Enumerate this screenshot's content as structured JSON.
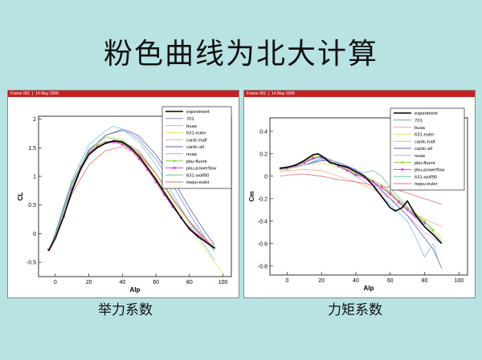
{
  "slide": {
    "title": "粉色曲线为北大计算",
    "captions": [
      "举力系数",
      "力矩系数"
    ],
    "frame_labels": [
      "Frame 001",
      "14 May 2006"
    ]
  },
  "series_styles": [
    {
      "name": "experiment",
      "color": "#000000",
      "width": 1.6
    },
    {
      "name": "701",
      "color": "#8a8ad4",
      "width": 0.8
    },
    {
      "name": "buaa",
      "color": "#f0a0b8",
      "width": 0.8
    },
    {
      "name": "631-euler",
      "color": "#e8e060",
      "width": 0.8
    },
    {
      "name": "cardc-half",
      "color": "#f0b090",
      "width": 0.8
    },
    {
      "name": "cardc-all",
      "color": "#6060c0",
      "width": 0.8
    },
    {
      "name": "nuaa",
      "color": "#80c0e8",
      "width": 0.8
    },
    {
      "name": "pku-fluent",
      "color": "#90d040",
      "width": 1.0,
      "marker": "diamond"
    },
    {
      "name": "pku-powerflow",
      "color": "#e040e0",
      "width": 1.0,
      "marker": "square"
    },
    {
      "name": "631-wolf90",
      "color": "#70c0a0",
      "width": 0.8
    },
    {
      "name": "nwpu-euler",
      "color": "#e87070",
      "width": 0.8
    }
  ],
  "chart_data": [
    {
      "type": "line",
      "xlabel": "Alp",
      "ylabel": "CL",
      "xlim": [
        -10,
        105
      ],
      "ylim": [
        -0.75,
        2.05
      ],
      "xticks": [
        0,
        20,
        40,
        60,
        80,
        100
      ],
      "yticks": [
        -0.5,
        0,
        0.5,
        1,
        1.5,
        2
      ],
      "legend_position": "top-right",
      "series": [
        {
          "name": "experiment",
          "x": [
            -4,
            0,
            5,
            10,
            15,
            20,
            25,
            30,
            35,
            40,
            45,
            50,
            55,
            60,
            65,
            70,
            75,
            80,
            85,
            90,
            95
          ],
          "y": [
            -0.3,
            -0.08,
            0.3,
            0.75,
            1.12,
            1.38,
            1.5,
            1.58,
            1.62,
            1.6,
            1.5,
            1.35,
            1.15,
            0.95,
            0.72,
            0.5,
            0.28,
            0.08,
            -0.05,
            -0.15,
            -0.25
          ]
        },
        {
          "name": "701",
          "x": [
            -4,
            0,
            10,
            20,
            30,
            40,
            45,
            50,
            60,
            70,
            80,
            90,
            95
          ],
          "y": [
            -0.3,
            0.0,
            0.9,
            1.45,
            1.72,
            1.8,
            1.75,
            1.65,
            1.3,
            0.85,
            0.35,
            -0.1,
            -0.3
          ]
        },
        {
          "name": "buaa",
          "x": [
            -4,
            0,
            10,
            20,
            30,
            40,
            50,
            60,
            70,
            80,
            90,
            95
          ],
          "y": [
            -0.3,
            -0.05,
            0.8,
            1.4,
            1.6,
            1.62,
            1.45,
            1.05,
            0.6,
            0.2,
            -0.12,
            -0.25
          ]
        },
        {
          "name": "631-euler",
          "x": [
            -4,
            0,
            10,
            20,
            30,
            40,
            50,
            60,
            70,
            80,
            90,
            100
          ],
          "y": [
            -0.3,
            -0.02,
            0.85,
            1.45,
            1.7,
            1.65,
            1.4,
            1.0,
            0.55,
            0.15,
            -0.3,
            -0.7
          ]
        },
        {
          "name": "cardc-half",
          "x": [
            -4,
            0,
            10,
            20,
            30,
            40,
            50,
            60,
            70,
            80,
            90,
            95
          ],
          "y": [
            -0.3,
            -0.05,
            0.82,
            1.42,
            1.62,
            1.58,
            1.4,
            1.05,
            0.62,
            0.22,
            -0.1,
            -0.22
          ]
        },
        {
          "name": "cardc-all",
          "x": [
            -4,
            0,
            10,
            20,
            30,
            40,
            45,
            50,
            60,
            70,
            80,
            90,
            95
          ],
          "y": [
            -0.3,
            0.0,
            0.88,
            1.45,
            1.72,
            1.82,
            1.78,
            1.7,
            1.38,
            0.95,
            0.45,
            0.0,
            -0.2
          ]
        },
        {
          "name": "nuaa",
          "x": [
            -4,
            0,
            10,
            20,
            30,
            35,
            40,
            50,
            60,
            70,
            80,
            90,
            95
          ],
          "y": [
            -0.3,
            0.02,
            0.95,
            1.55,
            1.8,
            1.88,
            1.82,
            1.6,
            1.2,
            0.7,
            0.2,
            -0.25,
            -0.45
          ]
        },
        {
          "name": "pku-fluent",
          "x": [
            -4,
            0,
            5,
            10,
            15,
            20,
            25,
            30,
            35,
            40,
            45,
            50,
            55,
            60,
            65,
            70,
            75,
            80,
            85,
            90,
            95
          ],
          "y": [
            -0.28,
            -0.05,
            0.32,
            0.8,
            1.18,
            1.42,
            1.55,
            1.6,
            1.62,
            1.58,
            1.48,
            1.32,
            1.12,
            0.92,
            0.7,
            0.48,
            0.28,
            0.1,
            -0.05,
            -0.15,
            -0.25
          ]
        },
        {
          "name": "pku-powerflow",
          "x": [
            -4,
            0,
            5,
            10,
            15,
            20,
            25,
            30,
            35,
            40,
            45,
            50,
            55,
            60,
            65,
            70,
            75,
            80,
            85,
            90
          ],
          "y": [
            -0.28,
            -0.06,
            0.3,
            0.78,
            1.15,
            1.4,
            1.52,
            1.58,
            1.6,
            1.56,
            1.47,
            1.3,
            1.12,
            0.9,
            0.68,
            0.47,
            0.28,
            0.1,
            -0.03,
            -0.12
          ]
        },
        {
          "name": "631-wolf90",
          "x": [
            -4,
            0,
            10,
            20,
            30,
            40,
            50,
            60,
            70,
            80,
            90,
            95
          ],
          "y": [
            -0.3,
            -0.04,
            0.88,
            1.48,
            1.68,
            1.62,
            1.42,
            1.05,
            0.6,
            0.2,
            -0.15,
            -0.3
          ]
        },
        {
          "name": "nwpu-euler",
          "x": [
            -4,
            0,
            10,
            20,
            30,
            40,
            50,
            60,
            70,
            80,
            90,
            95
          ],
          "y": [
            -0.3,
            -0.06,
            0.7,
            1.2,
            1.45,
            1.52,
            1.38,
            1.05,
            0.62,
            0.22,
            -0.12,
            -0.25
          ]
        }
      ]
    },
    {
      "type": "line",
      "xlabel": "Alp",
      "ylabel": "Cm",
      "xlim": [
        -10,
        105
      ],
      "ylim": [
        -0.88,
        0.52
      ],
      "xticks": [
        0,
        20,
        40,
        60,
        80,
        100
      ],
      "yticks": [
        0.4,
        0.2,
        0,
        -0.2,
        -0.4,
        -0.6,
        -0.8
      ],
      "legend_position": "top-right",
      "series": [
        {
          "name": "experiment",
          "x": [
            -4,
            0,
            5,
            10,
            15,
            18,
            22,
            25,
            30,
            35,
            40,
            45,
            50,
            55,
            60,
            63,
            67,
            70,
            75,
            80,
            85,
            90
          ],
          "y": [
            0.07,
            0.08,
            0.1,
            0.14,
            0.19,
            0.2,
            0.16,
            0.12,
            0.1,
            0.08,
            0.04,
            0.0,
            -0.08,
            -0.18,
            -0.28,
            -0.31,
            -0.28,
            -0.22,
            -0.35,
            -0.45,
            -0.52,
            -0.6
          ]
        },
        {
          "name": "701",
          "x": [
            -4,
            0,
            10,
            20,
            30,
            40,
            50,
            60,
            70,
            80,
            90
          ],
          "y": [
            0.08,
            0.08,
            0.12,
            0.18,
            0.12,
            0.05,
            -0.05,
            -0.15,
            -0.3,
            -0.45,
            -0.6
          ]
        },
        {
          "name": "buaa",
          "x": [
            -4,
            0,
            10,
            20,
            30,
            40,
            50,
            60,
            70,
            80,
            90
          ],
          "y": [
            0.06,
            0.07,
            0.1,
            0.15,
            0.1,
            0.03,
            -0.08,
            -0.2,
            -0.35,
            -0.5,
            -0.6
          ]
        },
        {
          "name": "631-euler",
          "x": [
            -4,
            0,
            10,
            20,
            30,
            40,
            50,
            60,
            70,
            80,
            90
          ],
          "y": [
            0.05,
            0.06,
            0.1,
            0.12,
            0.08,
            0.02,
            -0.05,
            -0.15,
            -0.3,
            -0.4,
            -0.55
          ]
        },
        {
          "name": "cardc-half",
          "x": [
            -4,
            0,
            10,
            20,
            30,
            40,
            50,
            60,
            70,
            80,
            90
          ],
          "y": [
            0.04,
            0.05,
            0.06,
            0.05,
            0.0,
            -0.05,
            -0.12,
            -0.2,
            -0.3,
            -0.38,
            -0.45
          ]
        },
        {
          "name": "cardc-all",
          "x": [
            -4,
            0,
            10,
            20,
            30,
            40,
            50,
            60,
            70,
            75,
            80,
            85,
            90
          ],
          "y": [
            0.08,
            0.07,
            0.1,
            0.14,
            0.12,
            0.06,
            -0.05,
            -0.2,
            -0.35,
            -0.45,
            -0.55,
            -0.65,
            -0.82
          ]
        },
        {
          "name": "nuaa",
          "x": [
            -4,
            0,
            10,
            20,
            30,
            40,
            50,
            60,
            70,
            75,
            80,
            85,
            88
          ],
          "y": [
            0.06,
            0.07,
            0.1,
            0.15,
            0.1,
            0.0,
            -0.1,
            -0.25,
            -0.4,
            -0.55,
            -0.72,
            -0.6,
            -0.75
          ]
        },
        {
          "name": "pku-fluent",
          "x": [
            -4,
            0,
            5,
            10,
            15,
            20,
            25,
            30,
            35,
            40,
            45,
            50,
            55,
            60,
            65,
            70,
            75,
            80,
            85
          ],
          "y": [
            0.07,
            0.08,
            0.1,
            0.13,
            0.17,
            0.18,
            0.14,
            0.1,
            0.06,
            0.02,
            0.0,
            -0.04,
            -0.08,
            -0.14,
            -0.22,
            -0.28,
            -0.34,
            -0.4,
            -0.48
          ]
        },
        {
          "name": "pku-powerflow",
          "x": [
            -4,
            0,
            5,
            10,
            15,
            20,
            25,
            30,
            35,
            40,
            45,
            50,
            55,
            60,
            65,
            70,
            75,
            80
          ],
          "y": [
            0.07,
            0.07,
            0.09,
            0.12,
            0.16,
            0.17,
            0.13,
            0.09,
            0.05,
            0.01,
            -0.01,
            -0.05,
            -0.1,
            -0.16,
            -0.23,
            -0.3,
            -0.36,
            -0.42
          ]
        },
        {
          "name": "631-wolf90",
          "x": [
            -4,
            0,
            10,
            20,
            30,
            40,
            45,
            50,
            55,
            60,
            70,
            80,
            90
          ],
          "y": [
            0.06,
            0.07,
            0.1,
            0.16,
            0.1,
            0.05,
            0.03,
            0.05,
            0.0,
            -0.1,
            -0.28,
            -0.42,
            -0.58
          ]
        },
        {
          "name": "nwpu-euler",
          "x": [
            -4,
            0,
            10,
            20,
            30,
            40,
            50,
            60,
            70,
            80,
            90
          ],
          "y": [
            0.0,
            0.01,
            0.02,
            0.0,
            -0.03,
            -0.05,
            -0.08,
            -0.1,
            -0.15,
            -0.2,
            -0.25
          ]
        }
      ]
    }
  ]
}
